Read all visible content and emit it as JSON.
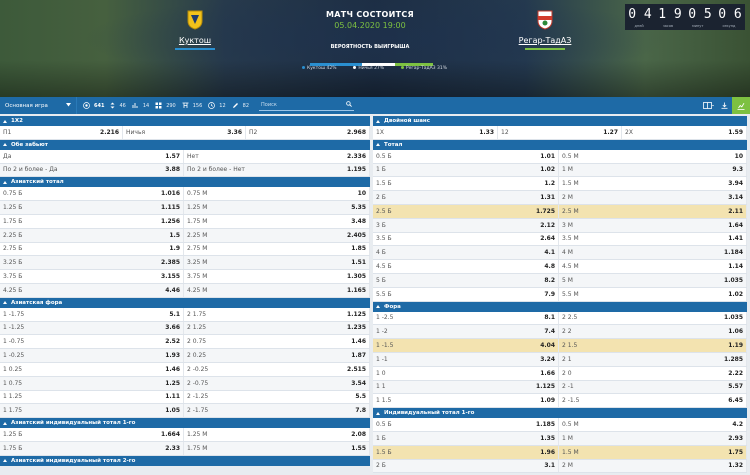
{
  "header": {
    "home": {
      "name": "Куктош"
    },
    "away": {
      "name": "Регар-ТадАЗ"
    },
    "title": "МАТЧ СОСТОИТСЯ",
    "date": "05.04.2020 19:00",
    "prob_title": "ВЕРОЯТНОСТЬ ВЫИГРЫША",
    "probabilities": [
      {
        "label": "Куктош 42%",
        "value": 42,
        "color": "#2a8fd0"
      },
      {
        "label": "Ничья 27%",
        "value": 27,
        "color": "#ffffff"
      },
      {
        "label": "Регар-ТадАЗ 31%",
        "value": 31,
        "color": "#7dc141"
      }
    ],
    "countdown": {
      "digits": [
        "04",
        "19",
        "05",
        "06"
      ],
      "labels": [
        "дней",
        "часов",
        "минут",
        "секунд"
      ]
    }
  },
  "toolbar": {
    "select": "Основная игра",
    "stats": [
      {
        "icon": "total-icon",
        "value": "641",
        "active": true
      },
      {
        "icon": "updown-icon",
        "value": "46"
      },
      {
        "icon": "graph-icon",
        "value": "14"
      },
      {
        "icon": "grid-icon",
        "value": "290"
      },
      {
        "icon": "flag-icon",
        "value": "156"
      },
      {
        "icon": "clock-icon",
        "value": "12"
      },
      {
        "icon": "pencil-icon",
        "value": "82"
      }
    ],
    "search_placeholder": "Поиск"
  },
  "left_groups": [
    {
      "title": "1X2",
      "cols": 3,
      "rows": [
        [
          [
            "П1",
            "2.216"
          ],
          [
            "Ничья",
            "3.36"
          ],
          [
            "П2",
            "2.968"
          ]
        ]
      ]
    },
    {
      "title": "Обе забьют",
      "cols": 2,
      "rows": [
        [
          [
            "Да",
            "1.57"
          ],
          [
            "Нет",
            "2.336"
          ]
        ],
        [
          [
            "По 2 и более - Да",
            "3.88"
          ],
          [
            "По 2 и более - Нет",
            "1.195"
          ]
        ]
      ]
    },
    {
      "title": "Азиатский тотал",
      "cols": 2,
      "rows": [
        [
          [
            "0.75 Б",
            "1.016"
          ],
          [
            "0.75 М",
            "10"
          ]
        ],
        [
          [
            "1.25 Б",
            "1.115"
          ],
          [
            "1.25 М",
            "5.35"
          ]
        ],
        [
          [
            "1.75 Б",
            "1.256"
          ],
          [
            "1.75 М",
            "3.48"
          ]
        ],
        [
          [
            "2.25 Б",
            "1.5"
          ],
          [
            "2.25 М",
            "2.405"
          ]
        ],
        [
          [
            "2.75 Б",
            "1.9"
          ],
          [
            "2.75 М",
            "1.85"
          ]
        ],
        [
          [
            "3.25 Б",
            "2.385"
          ],
          [
            "3.25 М",
            "1.51"
          ]
        ],
        [
          [
            "3.75 Б",
            "3.155"
          ],
          [
            "3.75 М",
            "1.305"
          ]
        ],
        [
          [
            "4.25 Б",
            "4.46"
          ],
          [
            "4.25 М",
            "1.165"
          ]
        ]
      ]
    },
    {
      "title": "Азиатская фора",
      "cols": 2,
      "rows": [
        [
          [
            "1 -1.75",
            "5.1"
          ],
          [
            "2 1.75",
            "1.125"
          ]
        ],
        [
          [
            "1 -1.25",
            "3.66"
          ],
          [
            "2 1.25",
            "1.235"
          ]
        ],
        [
          [
            "1 -0.75",
            "2.52"
          ],
          [
            "2 0.75",
            "1.46"
          ]
        ],
        [
          [
            "1 -0.25",
            "1.93"
          ],
          [
            "2 0.25",
            "1.87"
          ]
        ],
        [
          [
            "1 0.25",
            "1.46"
          ],
          [
            "2 -0.25",
            "2.515"
          ]
        ],
        [
          [
            "1 0.75",
            "1.25"
          ],
          [
            "2 -0.75",
            "3.54"
          ]
        ],
        [
          [
            "1 1.25",
            "1.11"
          ],
          [
            "2 -1.25",
            "5.5"
          ]
        ],
        [
          [
            "1 1.75",
            "1.05"
          ],
          [
            "2 -1.75",
            "7.8"
          ]
        ]
      ]
    },
    {
      "title": "Азиатский индивидуальный тотал 1-го",
      "cols": 2,
      "rows": [
        [
          [
            "1.25 Б",
            "1.664"
          ],
          [
            "1.25 М",
            "2.08"
          ]
        ],
        [
          [
            "1.75 Б",
            "2.33"
          ],
          [
            "1.75 М",
            "1.55"
          ]
        ]
      ]
    },
    {
      "title": "Азиатский индивидуальный тотал 2-го",
      "cols": 2,
      "rows": []
    }
  ],
  "right_groups": [
    {
      "title": "Двойной шанс",
      "cols": 3,
      "rows": [
        [
          [
            "1X",
            "1.33"
          ],
          [
            "12",
            "1.27"
          ],
          [
            "2X",
            "1.59"
          ]
        ]
      ]
    },
    {
      "title": "Тотал",
      "cols": 2,
      "hl": [
        5
      ],
      "rows": [
        [
          [
            "0.5 Б",
            "1.01"
          ],
          [
            "0.5 М",
            "10"
          ]
        ],
        [
          [
            "1 Б",
            "1.02"
          ],
          [
            "1 М",
            "9.3"
          ]
        ],
        [
          [
            "1.5 Б",
            "1.2"
          ],
          [
            "1.5 М",
            "3.94"
          ]
        ],
        [
          [
            "2 Б",
            "1.31"
          ],
          [
            "2 М",
            "3.14"
          ]
        ],
        [
          [
            "2.5 Б",
            "1.725"
          ],
          [
            "2.5 М",
            "2.11"
          ]
        ],
        [
          [
            "3 Б",
            "2.12"
          ],
          [
            "3 М",
            "1.64"
          ]
        ],
        [
          [
            "3.5 Б",
            "2.64"
          ],
          [
            "3.5 М",
            "1.41"
          ]
        ],
        [
          [
            "4 Б",
            "4.1"
          ],
          [
            "4 М",
            "1.184"
          ]
        ],
        [
          [
            "4.5 Б",
            "4.8"
          ],
          [
            "4.5 М",
            "1.14"
          ]
        ],
        [
          [
            "5 Б",
            "8.2"
          ],
          [
            "5 М",
            "1.035"
          ]
        ],
        [
          [
            "5.5 Б",
            "7.9"
          ],
          [
            "5.5 М",
            "1.02"
          ]
        ]
      ]
    },
    {
      "title": "Фора",
      "cols": 2,
      "hl": [
        3
      ],
      "rows": [
        [
          [
            "1 -2.5",
            "8.1"
          ],
          [
            "2 2.5",
            "1.035"
          ]
        ],
        [
          [
            "1 -2",
            "7.4"
          ],
          [
            "2 2",
            "1.06"
          ]
        ],
        [
          [
            "1 -1.5",
            "4.04"
          ],
          [
            "2 1.5",
            "1.19"
          ]
        ],
        [
          [
            "1 -1",
            "3.24"
          ],
          [
            "2 1",
            "1.285"
          ]
        ],
        [
          [
            "1 0",
            "1.66"
          ],
          [
            "2 0",
            "2.22"
          ]
        ],
        [
          [
            "1 1",
            "1.125"
          ],
          [
            "2 -1",
            "5.57"
          ]
        ],
        [
          [
            "1 1.5",
            "1.09"
          ],
          [
            "2 -1.5",
            "6.45"
          ]
        ]
      ]
    },
    {
      "title": "Индивидуальный тотал 1-го",
      "cols": 2,
      "hl": [
        3
      ],
      "rows": [
        [
          [
            "0.5 Б",
            "1.185"
          ],
          [
            "0.5 М",
            "4.2"
          ]
        ],
        [
          [
            "1 Б",
            "1.35"
          ],
          [
            "1 М",
            "2.93"
          ]
        ],
        [
          [
            "1.5 Б",
            "1.96"
          ],
          [
            "1.5 М",
            "1.75"
          ]
        ],
        [
          [
            "2 Б",
            "3.1"
          ],
          [
            "2 М",
            "1.32"
          ]
        ]
      ]
    }
  ]
}
